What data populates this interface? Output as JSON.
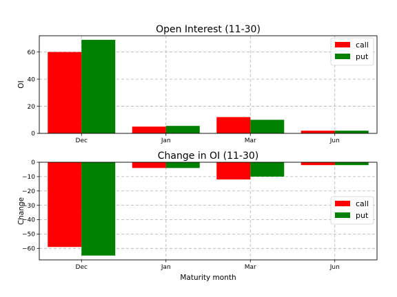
{
  "chart_data": [
    {
      "type": "bar",
      "title": "Open Interest (11-30)",
      "xlabel": "",
      "ylabel": "OI",
      "categories": [
        "Dec",
        "Jan",
        "Mar",
        "Jun"
      ],
      "ylim": [
        0,
        72
      ],
      "yticks": [
        0,
        20,
        40,
        60
      ],
      "grid": true,
      "legend_position": "top-right",
      "series": [
        {
          "name": "call",
          "color": "#ff0000",
          "values": [
            60,
            5,
            12,
            2
          ]
        },
        {
          "name": "put",
          "color": "#008000",
          "values": [
            69,
            5.5,
            10,
            2
          ]
        }
      ]
    },
    {
      "type": "bar",
      "title": "Change in OI (11-30)",
      "xlabel": "Maturity month",
      "ylabel": "Change",
      "categories": [
        "Dec",
        "Jan",
        "Mar",
        "Jun"
      ],
      "ylim": [
        -68,
        0
      ],
      "yticks": [
        0,
        -10,
        -20,
        -30,
        -40,
        -50,
        -60
      ],
      "grid": true,
      "legend_position": "center-right",
      "series": [
        {
          "name": "call",
          "color": "#ff0000",
          "values": [
            -59,
            -4,
            -12,
            -2
          ]
        },
        {
          "name": "put",
          "color": "#008000",
          "values": [
            -65,
            -4,
            -10,
            -2
          ]
        }
      ]
    }
  ]
}
